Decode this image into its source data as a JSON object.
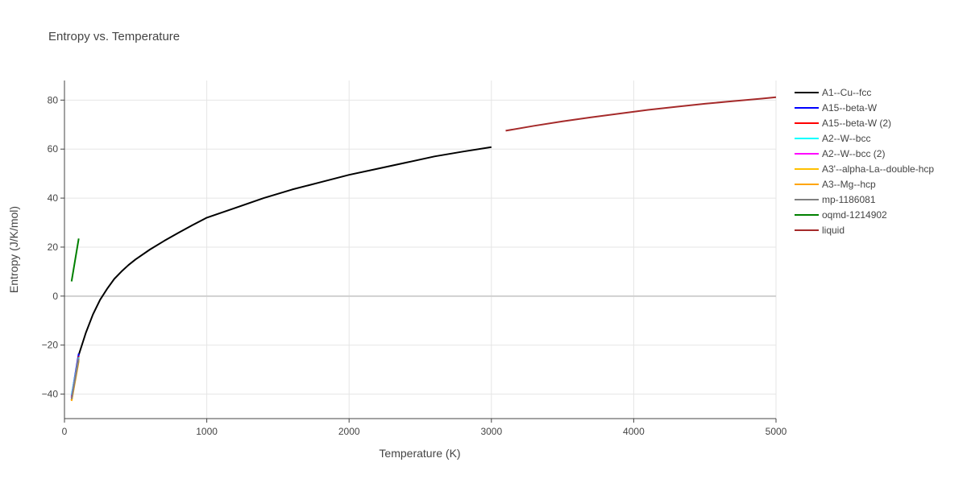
{
  "chart_data": {
    "type": "line",
    "title": "Entropy vs. Temperature",
    "xlabel": "Temperature (K)",
    "ylabel": "Entropy (J/K/mol)",
    "xlim": [
      0,
      5000
    ],
    "ylim": [
      -50,
      88
    ],
    "x_ticks": [
      0,
      1000,
      2000,
      3000,
      4000,
      5000
    ],
    "x_tick_labels": [
      "0",
      "1000",
      "2000",
      "3000",
      "4000",
      "5000"
    ],
    "y_ticks": [
      -40,
      -20,
      0,
      20,
      40,
      60,
      80
    ],
    "y_tick_labels": [
      "−40",
      "−20",
      "0",
      "20",
      "40",
      "60",
      "80"
    ],
    "grid": true,
    "legend_position": "right",
    "series": [
      {
        "name": "A1--Cu--fcc",
        "color": "#000000",
        "x": [
          50,
          100,
          150,
          200,
          250,
          300,
          350,
          400,
          450,
          500,
          600,
          700,
          800,
          900,
          1000,
          1200,
          1400,
          1600,
          1800,
          2000,
          2200,
          2400,
          2600,
          2800,
          3000
        ],
        "y": [
          -42.5,
          -24,
          -15,
          -7.5,
          -1.5,
          3,
          7,
          10,
          12.7,
          15,
          19,
          22.5,
          25.8,
          29,
          32,
          36,
          40,
          43.5,
          46.5,
          49.5,
          52,
          54.5,
          57,
          59,
          60.8
        ]
      },
      {
        "name": "A15--beta-W",
        "color": "#0000ff",
        "x": [
          50,
          100
        ],
        "y": [
          -41,
          -23.5
        ]
      },
      {
        "name": "A15--beta-W (2)",
        "color": "#ff0000",
        "x": [
          50,
          100
        ],
        "y": [
          -41.5,
          -24.5
        ]
      },
      {
        "name": "A2--W--bcc",
        "color": "#00ffff",
        "x": [
          50,
          100
        ],
        "y": [
          -40.5,
          -25
        ]
      },
      {
        "name": "A2--W--bcc (2)",
        "color": "#ff00ff",
        "x": [
          50,
          100
        ],
        "y": [
          -41.5,
          -25.5
        ]
      },
      {
        "name": "A3'--alpha-La--double-hcp",
        "color": "#ffc000",
        "x": [
          50,
          100
        ],
        "y": [
          -42.5,
          -26
        ]
      },
      {
        "name": "A3--Mg--hcp",
        "color": "#ffa500",
        "x": [
          50,
          100
        ],
        "y": [
          -42.8,
          -26.5
        ]
      },
      {
        "name": "mp-1186081",
        "color": "#808080",
        "x": [
          50,
          100
        ],
        "y": [
          -42,
          -25.5
        ]
      },
      {
        "name": "oqmd-1214902",
        "color": "#008000",
        "x": [
          50,
          100
        ],
        "y": [
          6,
          23.5
        ]
      },
      {
        "name": "liquid",
        "color": "#a52a2a",
        "x": [
          3100,
          3300,
          3500,
          3700,
          3900,
          4100,
          4300,
          4500,
          4700,
          4900,
          5000
        ],
        "y": [
          67.5,
          69.5,
          71.3,
          73,
          74.5,
          76,
          77.3,
          78.5,
          79.6,
          80.6,
          81.2
        ]
      }
    ]
  }
}
